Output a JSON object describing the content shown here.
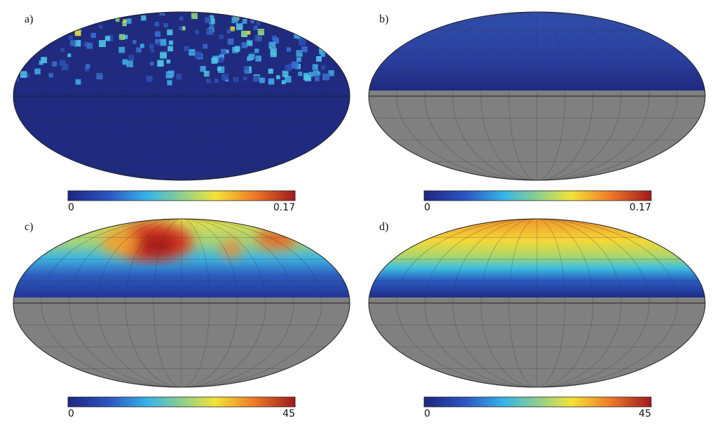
{
  "panels": [
    {
      "label": "a)",
      "colorbar": {
        "range": [
          0,
          0.17
        ],
        "ticks": [
          0,
          0.17
        ]
      }
    },
    {
      "label": "b)",
      "colorbar": {
        "range": [
          0,
          0.17
        ],
        "ticks": [
          0,
          0.17
        ]
      }
    },
    {
      "label": "c)",
      "colorbar": {
        "range": [
          0,
          45
        ],
        "ticks": [
          0,
          45
        ]
      }
    },
    {
      "label": "d)",
      "colorbar": {
        "range": [
          0,
          45
        ],
        "ticks": [
          0,
          45
        ]
      }
    }
  ]
}
